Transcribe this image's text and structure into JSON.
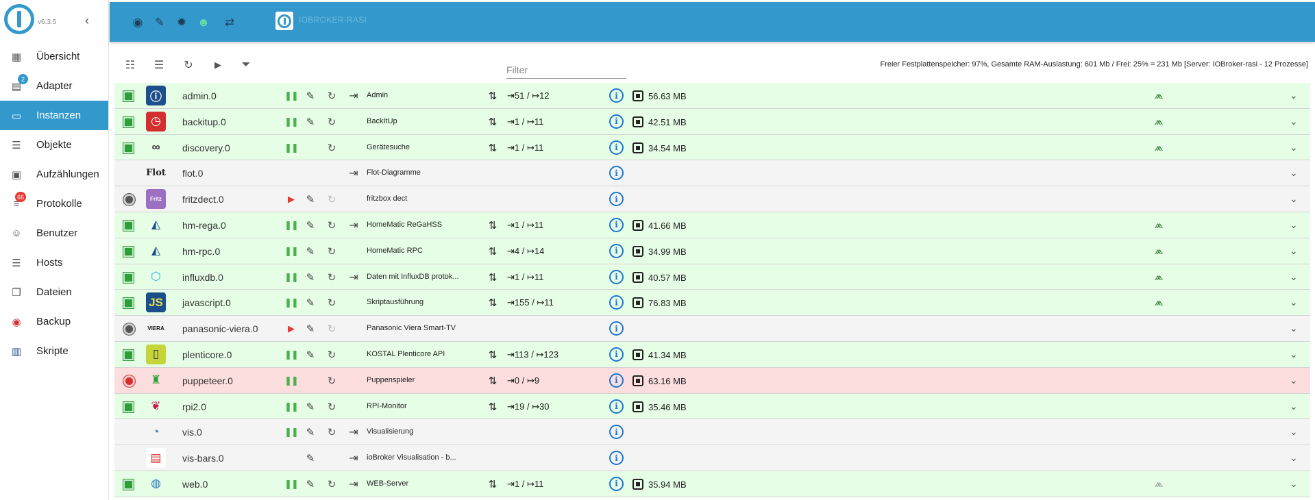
{
  "sidebar": {
    "version": "v6.3.5",
    "items": [
      {
        "label": "Übersicht",
        "icon": "grid-icon",
        "glyph": "▦",
        "active": false,
        "badge": ""
      },
      {
        "label": "Adapter",
        "icon": "store-icon",
        "glyph": "▤",
        "active": false,
        "badge": "2",
        "badge_color": "blue"
      },
      {
        "label": "Instanzen",
        "icon": "instances-icon",
        "glyph": "▭",
        "active": true,
        "badge": ""
      },
      {
        "label": "Objekte",
        "icon": "list-icon",
        "glyph": "☰",
        "active": false,
        "badge": ""
      },
      {
        "label": "Aufzählungen",
        "icon": "enum-icon",
        "glyph": "▣",
        "active": false,
        "badge": ""
      },
      {
        "label": "Protokolle",
        "icon": "log-icon",
        "glyph": "≡",
        "active": false,
        "badge": "66",
        "badge_color": "red"
      },
      {
        "label": "Benutzer",
        "icon": "user-icon",
        "glyph": "☺",
        "active": false,
        "badge": ""
      },
      {
        "label": "Hosts",
        "icon": "hosts-icon",
        "glyph": "☰",
        "active": false,
        "badge": ""
      },
      {
        "label": "Dateien",
        "icon": "files-icon",
        "glyph": "❐",
        "active": false,
        "badge": ""
      },
      {
        "label": "Backup",
        "icon": "backup-icon",
        "glyph": "◉",
        "active": false,
        "badge": ""
      },
      {
        "label": "Skripte",
        "icon": "scripts-icon",
        "glyph": "▥",
        "active": false,
        "badge": ""
      }
    ]
  },
  "topbar": {
    "title": "IOBROKER-RASI"
  },
  "toolbar": {
    "filter_placeholder": "Filter",
    "stats": "Freier Festplattenspeicher: 97%, Gesamte RAM-Auslastung: 601 Mb / Frei: 25% = 231 Mb [Server: IOBroker-rasi - 12 Prozesse]"
  },
  "instances": [
    {
      "name": "admin.0",
      "title": "Admin",
      "status": "green",
      "row": "green",
      "control": "pause",
      "wrench": true,
      "restart": "on",
      "link": true,
      "events": "⇥51 / ↦12",
      "memory": "56.63 MB",
      "conn": "on",
      "icon": "admin-adapter-icon",
      "icon_bg": "#1e4f8a",
      "icon_fg": "#fff",
      "icon_text": "ⓘ"
    },
    {
      "name": "backitup.0",
      "title": "BackItUp",
      "status": "green",
      "row": "green",
      "control": "pause",
      "wrench": true,
      "restart": "on",
      "link": false,
      "events": "⇥1 / ↦11",
      "memory": "42.51 MB",
      "conn": "on",
      "icon": "backitup-adapter-icon",
      "icon_bg": "#d32f2f",
      "icon_fg": "#fff",
      "icon_text": "◷"
    },
    {
      "name": "discovery.0",
      "title": "Gerätesuche",
      "status": "green",
      "row": "green",
      "control": "pause",
      "wrench": false,
      "restart": "on",
      "link": false,
      "events": "⇥1 / ↦11",
      "memory": "34.54 MB",
      "conn": "on",
      "icon": "discovery-adapter-icon",
      "icon_bg": "transparent",
      "icon_fg": "#333",
      "icon_text": "∞"
    },
    {
      "name": "flot.0",
      "title": "Flot-Diagramme",
      "status": "none",
      "row": "gray",
      "control": "none",
      "wrench": false,
      "restart": "none",
      "link": true,
      "events": "",
      "memory": "",
      "conn": "none",
      "icon": "flot-adapter-icon",
      "icon_bg": "transparent",
      "icon_fg": "#222",
      "icon_text": "Flot"
    },
    {
      "name": "fritzdect.0",
      "title": "fritzbox dect",
      "status": "gray",
      "row": "gray",
      "control": "play",
      "wrench": true,
      "restart": "disabled",
      "link": false,
      "events": "",
      "memory": "",
      "conn": "none",
      "icon": "fritzdect-adapter-icon",
      "icon_bg": "#9c6fc1",
      "icon_fg": "#fff",
      "icon_text": "Fritz"
    },
    {
      "name": "hm-rega.0",
      "title": "HomeMatic ReGaHSS",
      "status": "green",
      "row": "green",
      "control": "pause",
      "wrench": true,
      "restart": "on",
      "link": true,
      "events": "⇥1 / ↦11",
      "memory": "41.66 MB",
      "conn": "on",
      "icon": "hm-rega-adapter-icon",
      "icon_bg": "transparent",
      "icon_fg": "#1e4f8a",
      "icon_text": "◭"
    },
    {
      "name": "hm-rpc.0",
      "title": "HomeMatic RPC",
      "status": "green",
      "row": "green",
      "control": "pause",
      "wrench": true,
      "restart": "on",
      "link": false,
      "events": "⇥4 / ↦14",
      "memory": "34.99 MB",
      "conn": "on",
      "icon": "hm-rpc-adapter-icon",
      "icon_bg": "transparent",
      "icon_fg": "#1e4f8a",
      "icon_text": "◭"
    },
    {
      "name": "influxdb.0",
      "title": "Daten mit InfluxDB protok...",
      "status": "green",
      "row": "green",
      "control": "pause",
      "wrench": true,
      "restart": "on",
      "link": true,
      "events": "⇥1 / ↦11",
      "memory": "40.57 MB",
      "conn": "on",
      "icon": "influxdb-adapter-icon",
      "icon_bg": "transparent",
      "icon_fg": "#22adf6",
      "icon_text": "⬡"
    },
    {
      "name": "javascript.0",
      "title": "Skriptausführung",
      "status": "green",
      "row": "green",
      "control": "pause",
      "wrench": true,
      "restart": "on",
      "link": false,
      "events": "⇥155 / ↦11",
      "memory": "76.83 MB",
      "conn": "on",
      "icon": "javascript-adapter-icon",
      "icon_bg": "#1b4f8a",
      "icon_fg": "#f0db4f",
      "icon_text": "JS"
    },
    {
      "name": "panasonic-viera.0",
      "title": "Panasonic Viera Smart-TV",
      "status": "gray",
      "row": "gray",
      "control": "play",
      "wrench": true,
      "restart": "disabled",
      "link": false,
      "events": "",
      "memory": "",
      "conn": "none",
      "icon": "viera-adapter-icon",
      "icon_bg": "transparent",
      "icon_fg": "#111",
      "icon_text": "VIERA"
    },
    {
      "name": "plenticore.0",
      "title": "KOSTAL Plenticore API",
      "status": "green",
      "row": "green",
      "control": "pause",
      "wrench": true,
      "restart": "on",
      "link": false,
      "events": "⇥113 / ↦123",
      "memory": "41.34 MB",
      "conn": "none",
      "icon": "plenticore-adapter-icon",
      "icon_bg": "#c6d63a",
      "icon_fg": "#333",
      "icon_text": "▯"
    },
    {
      "name": "puppeteer.0",
      "title": "Puppenspieler",
      "status": "red",
      "row": "red",
      "control": "pause",
      "wrench": false,
      "restart": "on",
      "link": false,
      "events": "⇥0 / ↦9",
      "memory": "63.16 MB",
      "conn": "none",
      "icon": "puppeteer-adapter-icon",
      "icon_bg": "transparent",
      "icon_fg": "#2e9e3a",
      "icon_text": "♜"
    },
    {
      "name": "rpi2.0",
      "title": "RPI-Monitor",
      "status": "green",
      "row": "green",
      "control": "pause",
      "wrench": true,
      "restart": "on",
      "link": false,
      "events": "⇥19 / ↦30",
      "memory": "35.46 MB",
      "conn": "none",
      "icon": "raspberry-adapter-icon",
      "icon_bg": "transparent",
      "icon_fg": "#c51a4a",
      "icon_text": "❦"
    },
    {
      "name": "vis.0",
      "title": "Visualisierung",
      "status": "none",
      "row": "gray",
      "control": "pause",
      "wrench": true,
      "restart": "on",
      "link": true,
      "events": "",
      "memory": "",
      "conn": "none",
      "icon": "vis-adapter-icon",
      "icon_bg": "transparent",
      "icon_fg": "#2a7bbd",
      "icon_text": "◔"
    },
    {
      "name": "vis-bars.0",
      "title": "ioBroker Visualisation - b...",
      "status": "none",
      "row": "gray",
      "control": "none",
      "wrench": true,
      "restart": "none",
      "link": true,
      "events": "",
      "memory": "",
      "conn": "none",
      "icon": "vis-bars-adapter-icon",
      "icon_bg": "#fff",
      "icon_fg": "#d32f2f",
      "icon_text": "▤"
    },
    {
      "name": "web.0",
      "title": "WEB-Server",
      "status": "green",
      "row": "green",
      "control": "pause",
      "wrench": true,
      "restart": "on",
      "link": true,
      "events": "⇥1 / ↦11",
      "memory": "35.94 MB",
      "conn": "off",
      "icon": "web-adapter-icon",
      "icon_bg": "transparent",
      "icon_fg": "#2a7bbd",
      "icon_text": "◍"
    }
  ]
}
